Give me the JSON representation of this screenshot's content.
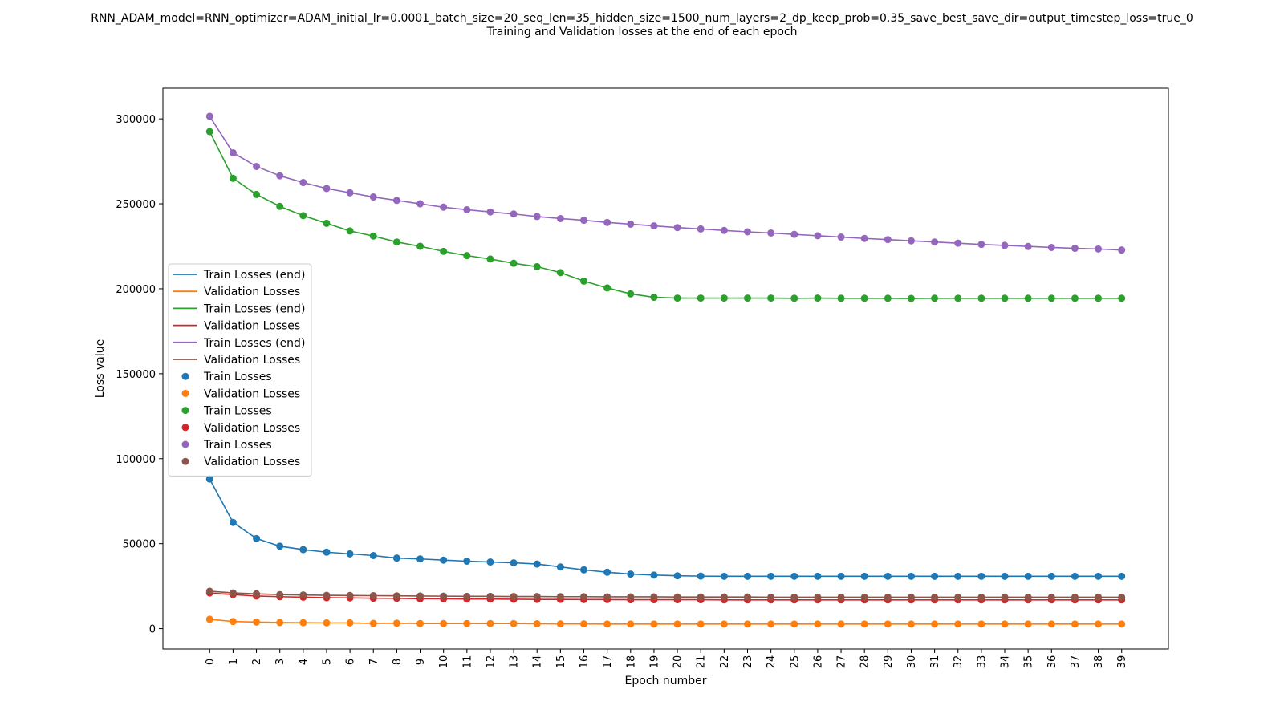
{
  "chart_data": {
    "type": "line",
    "title": "RNN_ADAM_model=RNN_optimizer=ADAM_initial_lr=0.0001_batch_size=20_seq_len=35_hidden_size=1500_num_layers=2_dp_keep_prob=0.35_save_best_save_dir=output_timestep_loss=true_0",
    "subtitle": "Training and Validation losses at the end of each epoch",
    "xlabel": "Epoch number",
    "ylabel": "Loss value",
    "x": [
      0,
      1,
      2,
      3,
      4,
      5,
      6,
      7,
      8,
      9,
      10,
      11,
      12,
      13,
      14,
      15,
      16,
      17,
      18,
      19,
      20,
      21,
      22,
      23,
      24,
      25,
      26,
      27,
      28,
      29,
      30,
      31,
      32,
      33,
      34,
      35,
      36,
      37,
      38,
      39
    ],
    "xlim": [
      -2,
      41
    ],
    "ylim": [
      -12000,
      318000
    ],
    "yticks": [
      0,
      50000,
      100000,
      150000,
      200000,
      250000,
      300000
    ],
    "grid": false,
    "legend_position": "center-left",
    "legend": [
      {
        "label": "Train Losses (end)",
        "color": "#1f77b4",
        "marker": "line"
      },
      {
        "label": "Validation Losses",
        "color": "#ff7f0e",
        "marker": "line"
      },
      {
        "label": "Train Losses (end)",
        "color": "#2ca02c",
        "marker": "line"
      },
      {
        "label": "Validation Losses",
        "color": "#d62728",
        "marker": "line"
      },
      {
        "label": "Train Losses (end)",
        "color": "#9467bd",
        "marker": "line"
      },
      {
        "label": "Validation Losses",
        "color": "#8c564b",
        "marker": "line"
      },
      {
        "label": "Train Losses",
        "color": "#1f77b4",
        "marker": "dot"
      },
      {
        "label": "Validation Losses",
        "color": "#ff7f0e",
        "marker": "dot"
      },
      {
        "label": "Train Losses",
        "color": "#2ca02c",
        "marker": "dot"
      },
      {
        "label": "Validation Losses",
        "color": "#d62728",
        "marker": "dot"
      },
      {
        "label": "Train Losses",
        "color": "#9467bd",
        "marker": "dot"
      },
      {
        "label": "Validation Losses",
        "color": "#8c564b",
        "marker": "dot"
      }
    ],
    "series": [
      {
        "color": "#1f77b4",
        "values": [
          88000,
          62500,
          53000,
          48500,
          46500,
          45000,
          44000,
          43000,
          41500,
          41000,
          40300,
          39700,
          39200,
          38700,
          38000,
          36300,
          34600,
          33200,
          32100,
          31500,
          31100,
          30900,
          30800,
          30800,
          30800,
          30800,
          30800,
          30800,
          30800,
          30800,
          30800,
          30800,
          30800,
          30800,
          30800,
          30800,
          30800,
          30800,
          30800,
          30800
        ]
      },
      {
        "color": "#ff7f0e",
        "values": [
          5500,
          4200,
          3900,
          3600,
          3500,
          3400,
          3400,
          3100,
          3200,
          3000,
          3000,
          3000,
          3000,
          3000,
          2900,
          2800,
          2800,
          2700,
          2700,
          2700,
          2700,
          2700,
          2700,
          2700,
          2700,
          2700,
          2700,
          2700,
          2700,
          2700,
          2700,
          2700,
          2700,
          2700,
          2700,
          2700,
          2700,
          2700,
          2700,
          2700
        ]
      },
      {
        "color": "#2ca02c",
        "values": [
          292500,
          265000,
          255500,
          248500,
          243000,
          238500,
          234000,
          231000,
          227500,
          225000,
          222000,
          219500,
          217500,
          215000,
          213000,
          209500,
          204500,
          200500,
          197000,
          195000,
          194500,
          194500,
          194500,
          194500,
          194500,
          194400,
          194500,
          194400,
          194400,
          194400,
          194300,
          194400,
          194400,
          194400,
          194400,
          194400,
          194400,
          194400,
          194400,
          194400
        ]
      },
      {
        "color": "#d62728",
        "values": [
          21000,
          20000,
          19200,
          18800,
          18500,
          18200,
          18100,
          17900,
          17800,
          17600,
          17500,
          17400,
          17400,
          17300,
          17200,
          17200,
          17100,
          17100,
          17000,
          17000,
          17000,
          17000,
          16900,
          16900,
          16900,
          16900,
          16900,
          16900,
          16900,
          16900,
          16900,
          16900,
          16900,
          16900,
          16900,
          16900,
          16900,
          16900,
          16900,
          16900
        ]
      },
      {
        "color": "#9467bd",
        "values": [
          301500,
          280000,
          272000,
          266500,
          262500,
          259000,
          256500,
          254000,
          252000,
          250000,
          248000,
          246500,
          245200,
          244000,
          242500,
          241300,
          240300,
          239000,
          238000,
          237000,
          236000,
          235200,
          234300,
          233500,
          232800,
          232000,
          231200,
          230400,
          229600,
          228900,
          228200,
          227500,
          226800,
          226100,
          225500,
          224900,
          224300,
          223800,
          223400,
          222800
        ]
      },
      {
        "color": "#8c564b",
        "values": [
          22000,
          21000,
          20500,
          20000,
          19800,
          19600,
          19500,
          19400,
          19300,
          19200,
          19100,
          19000,
          19000,
          18900,
          18900,
          18800,
          18800,
          18700,
          18700,
          18700,
          18600,
          18600,
          18600,
          18600,
          18500,
          18500,
          18500,
          18500,
          18500,
          18500,
          18500,
          18500,
          18500,
          18500,
          18500,
          18500,
          18500,
          18500,
          18500,
          18500
        ]
      }
    ]
  }
}
